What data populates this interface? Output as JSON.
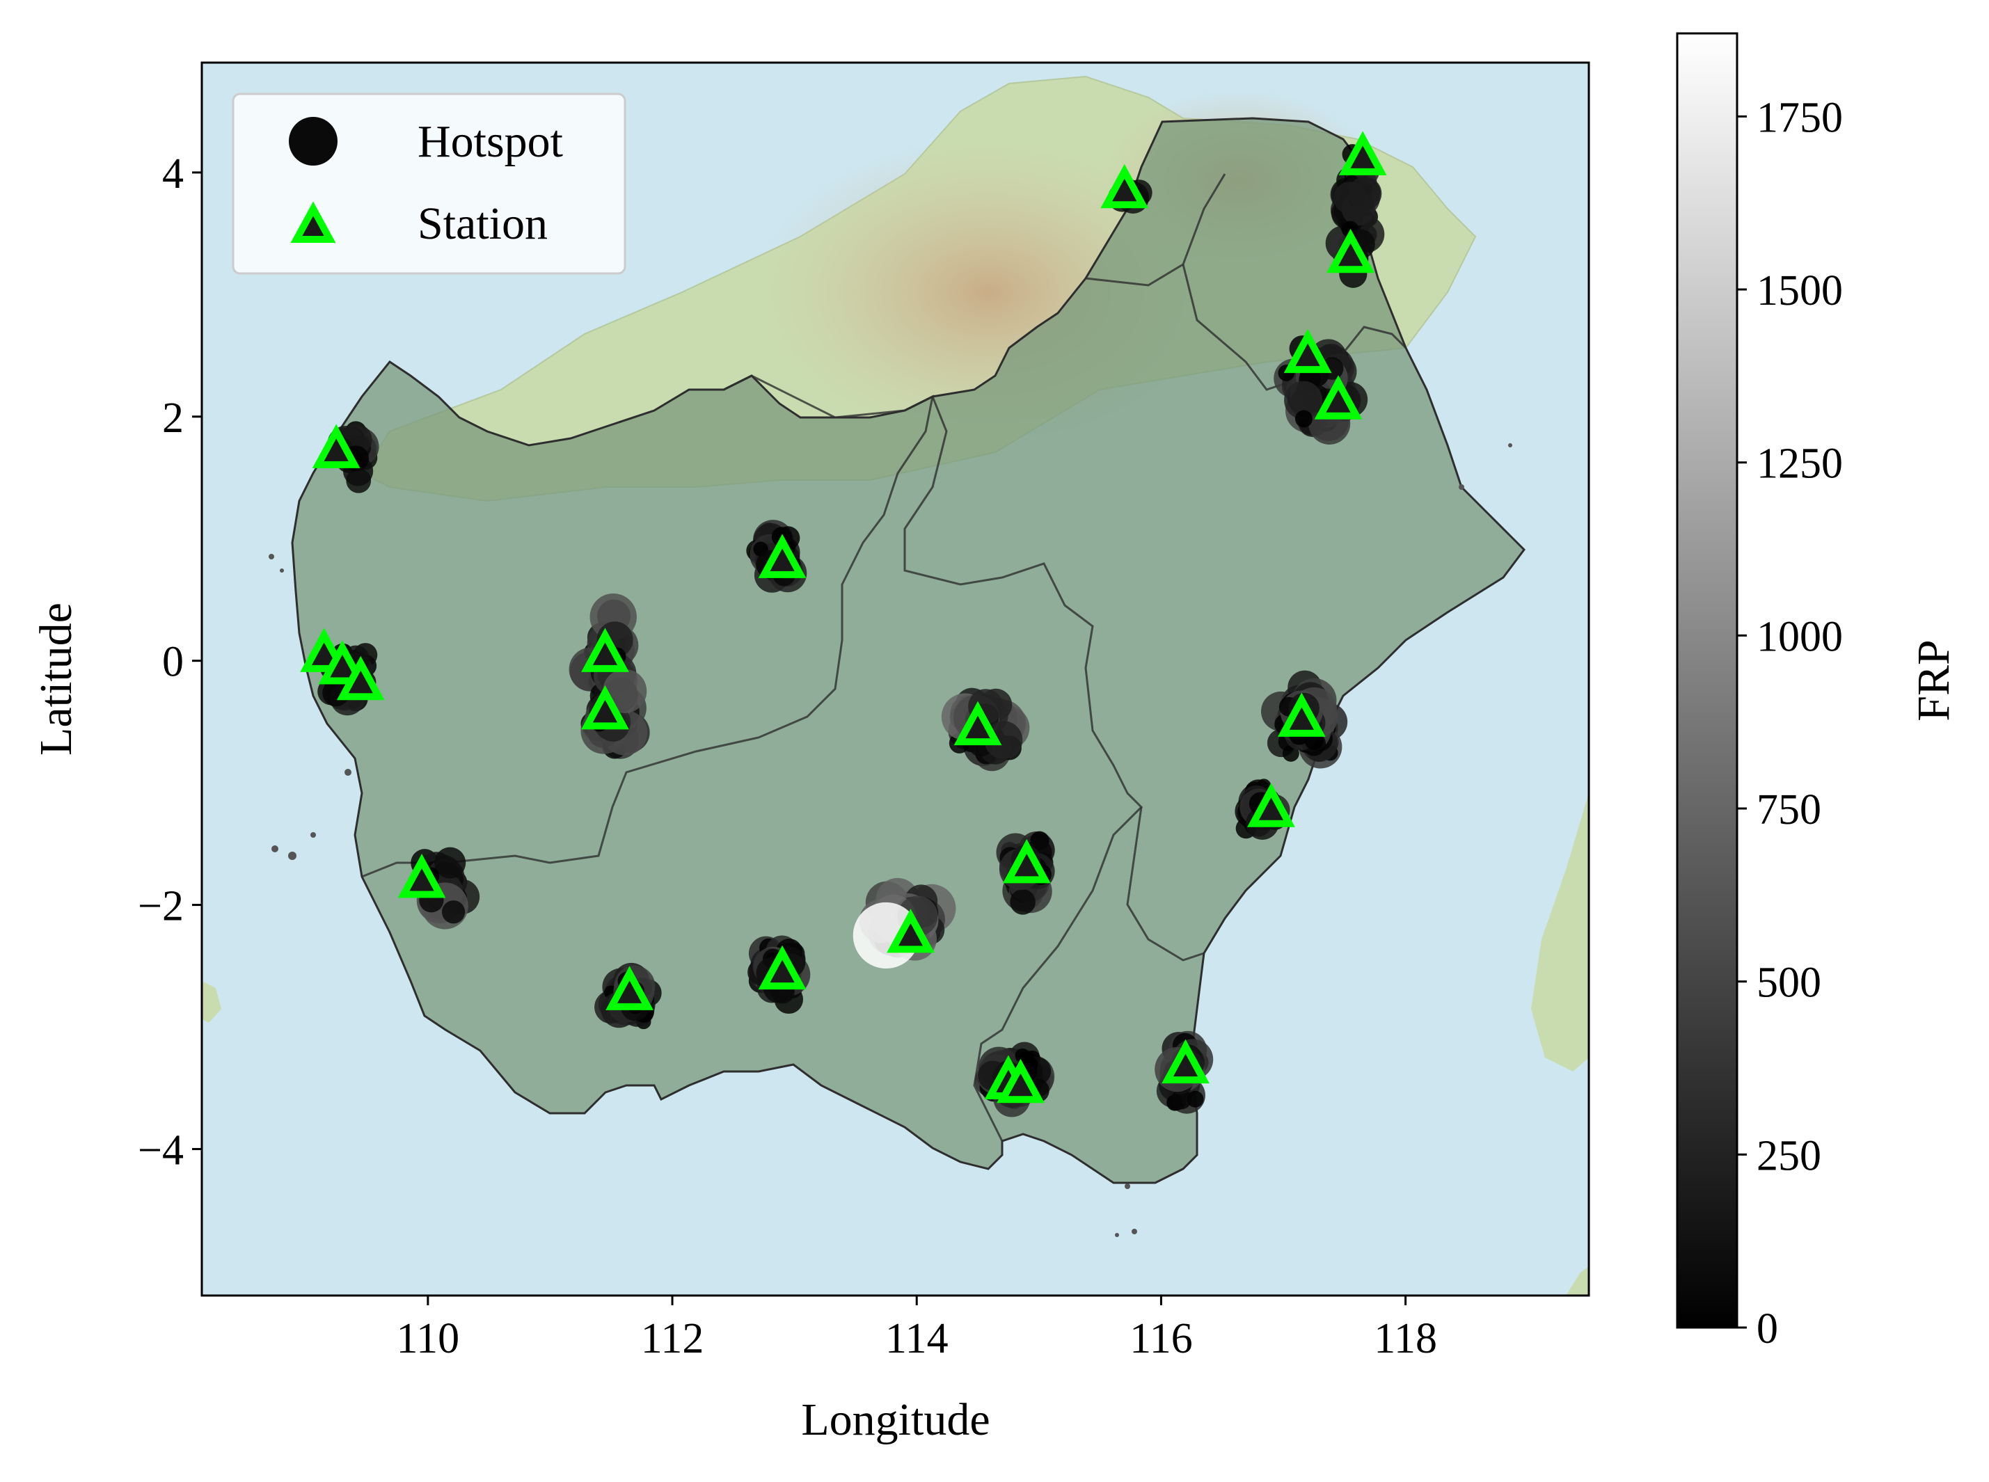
{
  "map": {
    "xlabel": "Longitude",
    "ylabel": "Latitude",
    "xlim": [
      108.15,
      119.5
    ],
    "ylim": [
      -5.2,
      4.9
    ],
    "x_ticks": [
      {
        "value": 110,
        "label": "110"
      },
      {
        "value": 112,
        "label": "112"
      },
      {
        "value": 114,
        "label": "114"
      },
      {
        "value": 116,
        "label": "116"
      },
      {
        "value": 118,
        "label": "118"
      }
    ],
    "y_ticks": [
      {
        "value": 4,
        "label": "4"
      },
      {
        "value": 2,
        "label": "2"
      },
      {
        "value": 0,
        "label": "0"
      },
      {
        "value": -2,
        "label": "−2"
      },
      {
        "value": -4,
        "label": "−4"
      }
    ],
    "colors": {
      "sea": "#cde6ef",
      "land": "#c9dcb0",
      "highland": "#d8c4a4",
      "study_area": "#7a9a7c",
      "boundary": "#2e2e2e",
      "station": "#00ff00"
    }
  },
  "legend": {
    "position": "upper-left",
    "hotspot_label": "Hotspot",
    "station_label": "Station"
  },
  "colorbar": {
    "label": "FRP",
    "colormap": "gray",
    "range": [
      0,
      1870
    ],
    "ticks": [
      {
        "value": 0,
        "label": "0"
      },
      {
        "value": 250,
        "label": "250"
      },
      {
        "value": 500,
        "label": "500"
      },
      {
        "value": 750,
        "label": "750"
      },
      {
        "value": 1000,
        "label": "1000"
      },
      {
        "value": 1250,
        "label": "1250"
      },
      {
        "value": 1500,
        "label": "1500"
      },
      {
        "value": 1750,
        "label": "1750"
      }
    ]
  },
  "stations": [
    {
      "lon": 109.25,
      "lat": 1.72
    },
    {
      "lon": 109.15,
      "lat": 0.05
    },
    {
      "lon": 109.3,
      "lat": -0.05
    },
    {
      "lon": 109.45,
      "lat": -0.18
    },
    {
      "lon": 109.95,
      "lat": -1.8
    },
    {
      "lon": 111.45,
      "lat": 0.05
    },
    {
      "lon": 111.45,
      "lat": -0.42
    },
    {
      "lon": 111.65,
      "lat": -2.72
    },
    {
      "lon": 112.9,
      "lat": 0.82
    },
    {
      "lon": 112.9,
      "lat": -2.55
    },
    {
      "lon": 113.95,
      "lat": -2.25
    },
    {
      "lon": 114.5,
      "lat": -0.55
    },
    {
      "lon": 114.9,
      "lat": -1.68
    },
    {
      "lon": 114.75,
      "lat": -3.45
    },
    {
      "lon": 114.85,
      "lat": -3.48
    },
    {
      "lon": 115.7,
      "lat": 3.85
    },
    {
      "lon": 117.65,
      "lat": 4.12
    },
    {
      "lon": 117.55,
      "lat": 3.32
    },
    {
      "lon": 117.2,
      "lat": 2.5
    },
    {
      "lon": 117.45,
      "lat": 2.12
    },
    {
      "lon": 117.15,
      "lat": -0.48
    },
    {
      "lon": 116.9,
      "lat": -1.22
    },
    {
      "lon": 116.2,
      "lat": -3.32
    }
  ],
  "hotspot_clusters": [
    {
      "lon": 109.4,
      "lat": 1.7,
      "spread_lon": 0.12,
      "spread_lat": 0.22,
      "count": 22,
      "frp_max": 380
    },
    {
      "lon": 109.35,
      "lat": -0.15,
      "spread_lon": 0.15,
      "spread_lat": 0.22,
      "count": 40,
      "frp_max": 260
    },
    {
      "lon": 110.1,
      "lat": -1.85,
      "spread_lon": 0.14,
      "spread_lat": 0.22,
      "count": 28,
      "frp_max": 650
    },
    {
      "lon": 111.5,
      "lat": -0.2,
      "spread_lon": 0.14,
      "spread_lat": 0.5,
      "count": 90,
      "frp_max": 640
    },
    {
      "lon": 111.65,
      "lat": -2.75,
      "spread_lon": 0.16,
      "spread_lat": 0.2,
      "count": 40,
      "frp_max": 520
    },
    {
      "lon": 112.85,
      "lat": 0.85,
      "spread_lon": 0.16,
      "spread_lat": 0.2,
      "count": 40,
      "frp_max": 360
    },
    {
      "lon": 112.85,
      "lat": -2.55,
      "spread_lon": 0.15,
      "spread_lat": 0.22,
      "count": 40,
      "frp_max": 560
    },
    {
      "lon": 113.9,
      "lat": -2.15,
      "spread_lon": 0.22,
      "spread_lat": 0.17,
      "count": 48,
      "frp_max": 780
    },
    {
      "lon": 114.55,
      "lat": -0.55,
      "spread_lon": 0.22,
      "spread_lat": 0.2,
      "count": 65,
      "frp_max": 820
    },
    {
      "lon": 114.9,
      "lat": -1.7,
      "spread_lon": 0.16,
      "spread_lat": 0.22,
      "count": 35,
      "frp_max": 420
    },
    {
      "lon": 114.8,
      "lat": -3.4,
      "spread_lon": 0.2,
      "spread_lat": 0.17,
      "count": 70,
      "frp_max": 520
    },
    {
      "lon": 115.75,
      "lat": 3.82,
      "spread_lon": 0.07,
      "spread_lat": 0.1,
      "count": 8,
      "frp_max": 200
    },
    {
      "lon": 117.6,
      "lat": 3.7,
      "spread_lon": 0.12,
      "spread_lat": 0.45,
      "count": 55,
      "frp_max": 320
    },
    {
      "lon": 117.3,
      "lat": 2.25,
      "spread_lon": 0.22,
      "spread_lat": 0.3,
      "count": 110,
      "frp_max": 520
    },
    {
      "lon": 117.2,
      "lat": -0.5,
      "spread_lon": 0.2,
      "spread_lat": 0.25,
      "count": 75,
      "frp_max": 600
    },
    {
      "lon": 116.8,
      "lat": -1.22,
      "spread_lon": 0.13,
      "spread_lat": 0.17,
      "count": 30,
      "frp_max": 360
    },
    {
      "lon": 116.2,
      "lat": -3.4,
      "spread_lon": 0.12,
      "spread_lat": 0.25,
      "count": 30,
      "frp_max": 560
    },
    {
      "lon": 113.75,
      "lat": -2.25,
      "spread_lon": 0.0,
      "spread_lat": 0.0,
      "count": 1,
      "frp_max": 1870
    }
  ]
}
